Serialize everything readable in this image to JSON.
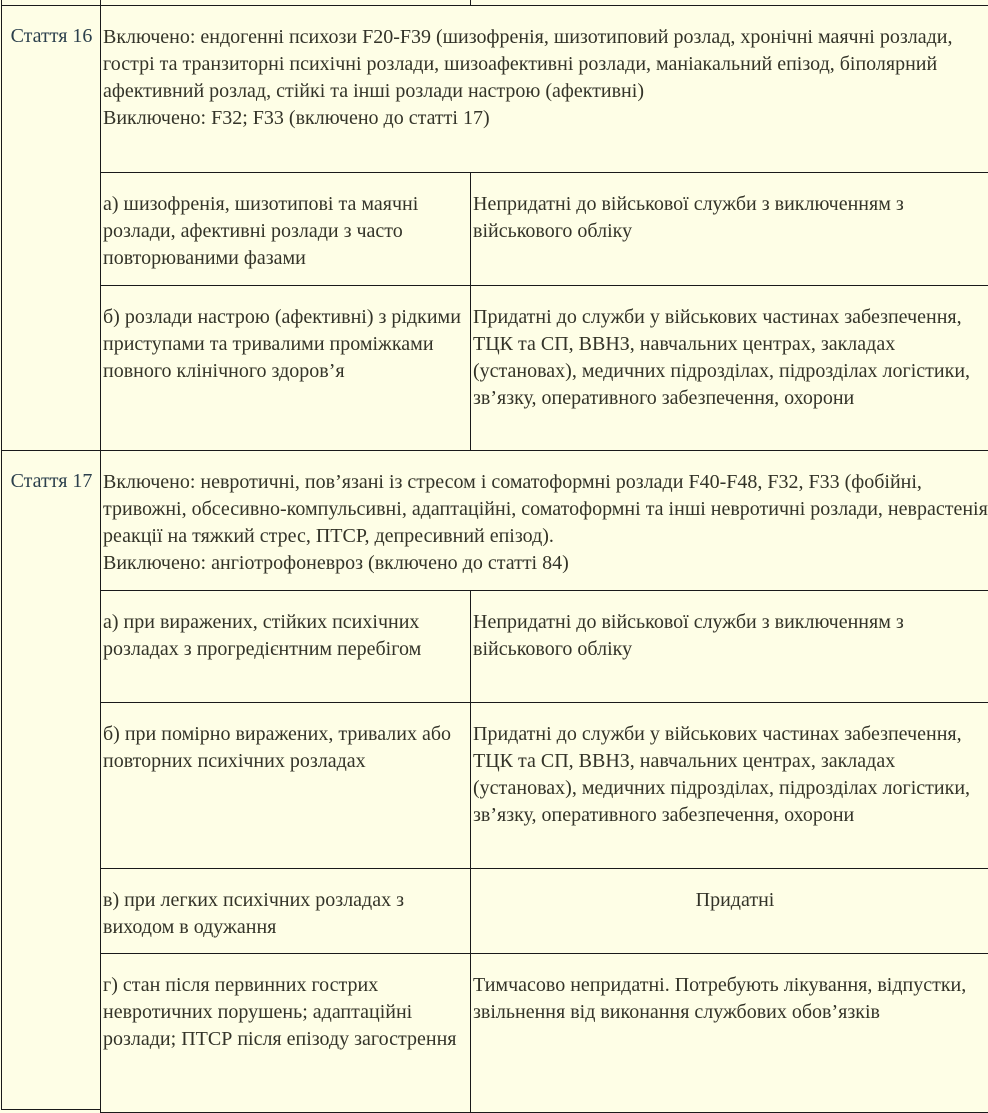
{
  "articles": [
    {
      "label": "Стаття 16",
      "header": {
        "included": "Включено: ендогенні психози F20-F39 (шизофренія, шизотиповий розлад, хронічні маячні розлади, гострі та транзиторні психічні розлади, шизоафективні розлади, маніакальний епізод, біполярний афективний розлад, стійкі та інші розлади настрою (афективні)",
        "excluded": "Виключено: F32; F33 (включено до статті 17)"
      },
      "rows": [
        {
          "condition": "а) шизофренія, шизотипові та маячні розлади, афективні розлади з часто повторюваними фазами",
          "verdict": "Непридатні до військової служби з виключенням з військового обліку"
        },
        {
          "condition": "б) розлади настрою (афективні) з рідкими приступами та тривалими проміжками повного клінічного здоров’я",
          "verdict": "Придатні до служби у військових частинах забезпечення, ТЦК та СП, ВВНЗ, навчальних центрах, закладах (установах), медичних підрозділах, підрозділах логістики, зв’язку, оперативного забезпечення, охорони"
        }
      ]
    },
    {
      "label": "Стаття 17",
      "header": {
        "included": "Включено: невротичні, пов’язані із стресом і соматоформні розлади F40-F48, F32, F33 (фобійні, тривожні, обсесивно-компульсивні, адаптаційні, соматоформні та інші невротичні розлади, неврастенія, реакції на тяжкий стрес, ПТСР, депресивний епізод).",
        "excluded": "Виключено: ангіотрофоневроз (включено до статті 84)"
      },
      "rows": [
        {
          "condition": "а) при виражених, стійких психічних розладах з прогредієнтним перебігом",
          "verdict": "Непридатні до військової служби з виключенням з військового обліку"
        },
        {
          "condition": "б) при помірно виражених, тривалих або повторних психічних розладах",
          "verdict": "Придатні до служби у військових частинах забезпечення, ТЦК та СП, ВВНЗ, навчальних центрах, закладах (установах), медичних підрозділах, підрозділах логістики, зв’язку, оперативного забезпечення, охорони"
        },
        {
          "condition": "в) при легких психічних розладах з виходом в одужання",
          "verdict": "Придатні"
        },
        {
          "condition": "г) стан після первинних гострих невротичних порушень; адаптаційні розлади; ПТСР після епізоду загострення",
          "verdict": "Тимчасово непридатні. Потребують лікування, відпустки, звільнення від виконання службових обов’язків"
        }
      ]
    }
  ]
}
